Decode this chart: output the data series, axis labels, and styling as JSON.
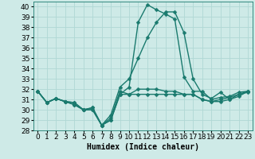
{
  "xlabel": "Humidex (Indice chaleur)",
  "ylabel": "",
  "background_color": "#ceeae7",
  "grid_color": "#b0d8d4",
  "line_color": "#1a7a6e",
  "xlim": [
    -0.5,
    23.5
  ],
  "ylim": [
    28,
    40.5
  ],
  "yticks": [
    28,
    29,
    30,
    31,
    32,
    33,
    34,
    35,
    36,
    37,
    38,
    39,
    40
  ],
  "xticks": [
    0,
    1,
    2,
    3,
    4,
    5,
    6,
    7,
    8,
    9,
    10,
    11,
    12,
    13,
    14,
    15,
    16,
    17,
    18,
    19,
    20,
    21,
    22,
    23
  ],
  "series": [
    [
      31.8,
      30.7,
      31.1,
      30.8,
      30.5,
      30.0,
      30.0,
      28.5,
      29.0,
      31.5,
      31.5,
      32.0,
      32.0,
      32.0,
      31.8,
      31.8,
      31.5,
      31.5,
      31.0,
      30.8,
      30.8,
      31.0,
      31.5,
      31.8
    ],
    [
      31.8,
      30.7,
      31.1,
      30.8,
      30.7,
      30.0,
      30.2,
      28.5,
      29.2,
      31.8,
      31.5,
      31.5,
      31.5,
      31.5,
      31.5,
      31.5,
      31.5,
      31.5,
      31.0,
      30.8,
      31.0,
      31.2,
      31.5,
      31.7
    ],
    [
      31.8,
      30.7,
      31.1,
      30.8,
      30.7,
      30.0,
      30.2,
      28.5,
      29.5,
      32.2,
      33.0,
      35.0,
      37.0,
      38.5,
      39.5,
      39.5,
      37.5,
      33.0,
      31.5,
      31.1,
      31.7,
      31.0,
      31.3,
      31.8
    ],
    [
      31.8,
      30.7,
      31.1,
      30.8,
      30.5,
      30.0,
      30.0,
      28.5,
      29.0,
      31.5,
      32.2,
      38.5,
      40.2,
      39.7,
      39.3,
      38.8,
      33.2,
      31.8,
      31.8,
      31.0,
      31.2,
      31.3,
      31.7,
      31.8
    ]
  ],
  "marker_indices": {
    "0": [
      0,
      1,
      2,
      3,
      4,
      5,
      6,
      7,
      8,
      9,
      10,
      11,
      12,
      13,
      14,
      15,
      16,
      17,
      18,
      19,
      20,
      21,
      22,
      23
    ],
    "1": [
      0,
      1,
      2,
      3,
      4,
      5,
      6,
      7,
      8,
      9,
      10,
      11,
      12,
      13,
      14,
      15,
      16,
      17,
      18,
      19,
      20,
      21,
      22,
      23
    ],
    "2": [
      0,
      1,
      2,
      3,
      4,
      5,
      6,
      7,
      8,
      9,
      10,
      11,
      12,
      13,
      14,
      15,
      16,
      17,
      18,
      19,
      20,
      21,
      22,
      23
    ],
    "3": [
      0,
      1,
      2,
      3,
      4,
      5,
      6,
      7,
      8,
      9,
      10,
      11,
      12,
      13,
      14,
      15,
      16,
      17,
      18,
      19,
      20,
      21,
      22,
      23
    ]
  },
  "markersize": 2.5,
  "linewidth": 1.0,
  "fontsize_label": 7,
  "fontsize_tick": 6.5
}
